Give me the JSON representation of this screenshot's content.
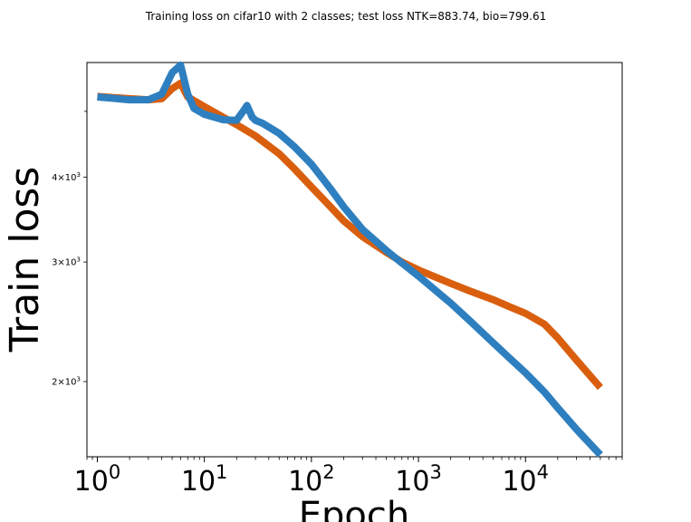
{
  "chart_data": {
    "type": "line",
    "title": "Training loss on cifar10 with 2 classes; test loss NTK=883.74, bio=799.61",
    "xlabel": "Epoch",
    "ylabel": "Train loss",
    "xscale": "log",
    "yscale": "log",
    "xlim": [
      0.8,
      80000
    ],
    "ylim": [
      1550,
      5900
    ],
    "x_ticks": [
      {
        "value": 1,
        "base": "10",
        "exp": "0"
      },
      {
        "value": 10,
        "base": "10",
        "exp": "1"
      },
      {
        "value": 100,
        "base": "10",
        "exp": "2"
      },
      {
        "value": 1000,
        "base": "10",
        "exp": "3"
      },
      {
        "value": 10000,
        "base": "10",
        "exp": "4"
      }
    ],
    "y_ticks": [
      {
        "value": 2000,
        "mant": "2",
        "exp": "3"
      },
      {
        "value": 3000,
        "mant": "3",
        "exp": "3"
      },
      {
        "value": 4000,
        "mant": "4",
        "exp": "3"
      }
    ],
    "grid": false,
    "legend": "none",
    "series": [
      {
        "color": "#d95f0e",
        "x": [
          1,
          2,
          3,
          4,
          5,
          6,
          7,
          10,
          15,
          20,
          30,
          50,
          70,
          100,
          150,
          200,
          300,
          500,
          700,
          1000,
          2000,
          3000,
          5000,
          7000,
          10000,
          15000,
          20000,
          30000,
          50000
        ],
        "y": [
          5260,
          5220,
          5200,
          5220,
          5400,
          5500,
          5250,
          5080,
          4900,
          4780,
          4600,
          4330,
          4110,
          3870,
          3620,
          3450,
          3270,
          3100,
          3000,
          2920,
          2790,
          2720,
          2640,
          2580,
          2520,
          2430,
          2320,
          2150,
          1960
        ]
      },
      {
        "color": "#2e7fbf",
        "x": [
          1,
          2,
          3,
          4,
          5,
          6,
          7,
          8,
          10,
          15,
          20,
          23,
          25,
          28,
          30,
          35,
          50,
          70,
          100,
          150,
          200,
          300,
          500,
          700,
          1000,
          2000,
          3000,
          5000,
          7000,
          10000,
          15000,
          20000,
          30000,
          50000
        ],
        "y": [
          5250,
          5200,
          5200,
          5300,
          5700,
          5850,
          5300,
          5050,
          4950,
          4860,
          4850,
          5000,
          5100,
          4900,
          4850,
          4800,
          4640,
          4430,
          4180,
          3850,
          3620,
          3350,
          3120,
          2990,
          2860,
          2610,
          2460,
          2280,
          2170,
          2060,
          1930,
          1830,
          1700,
          1560
        ]
      }
    ]
  }
}
